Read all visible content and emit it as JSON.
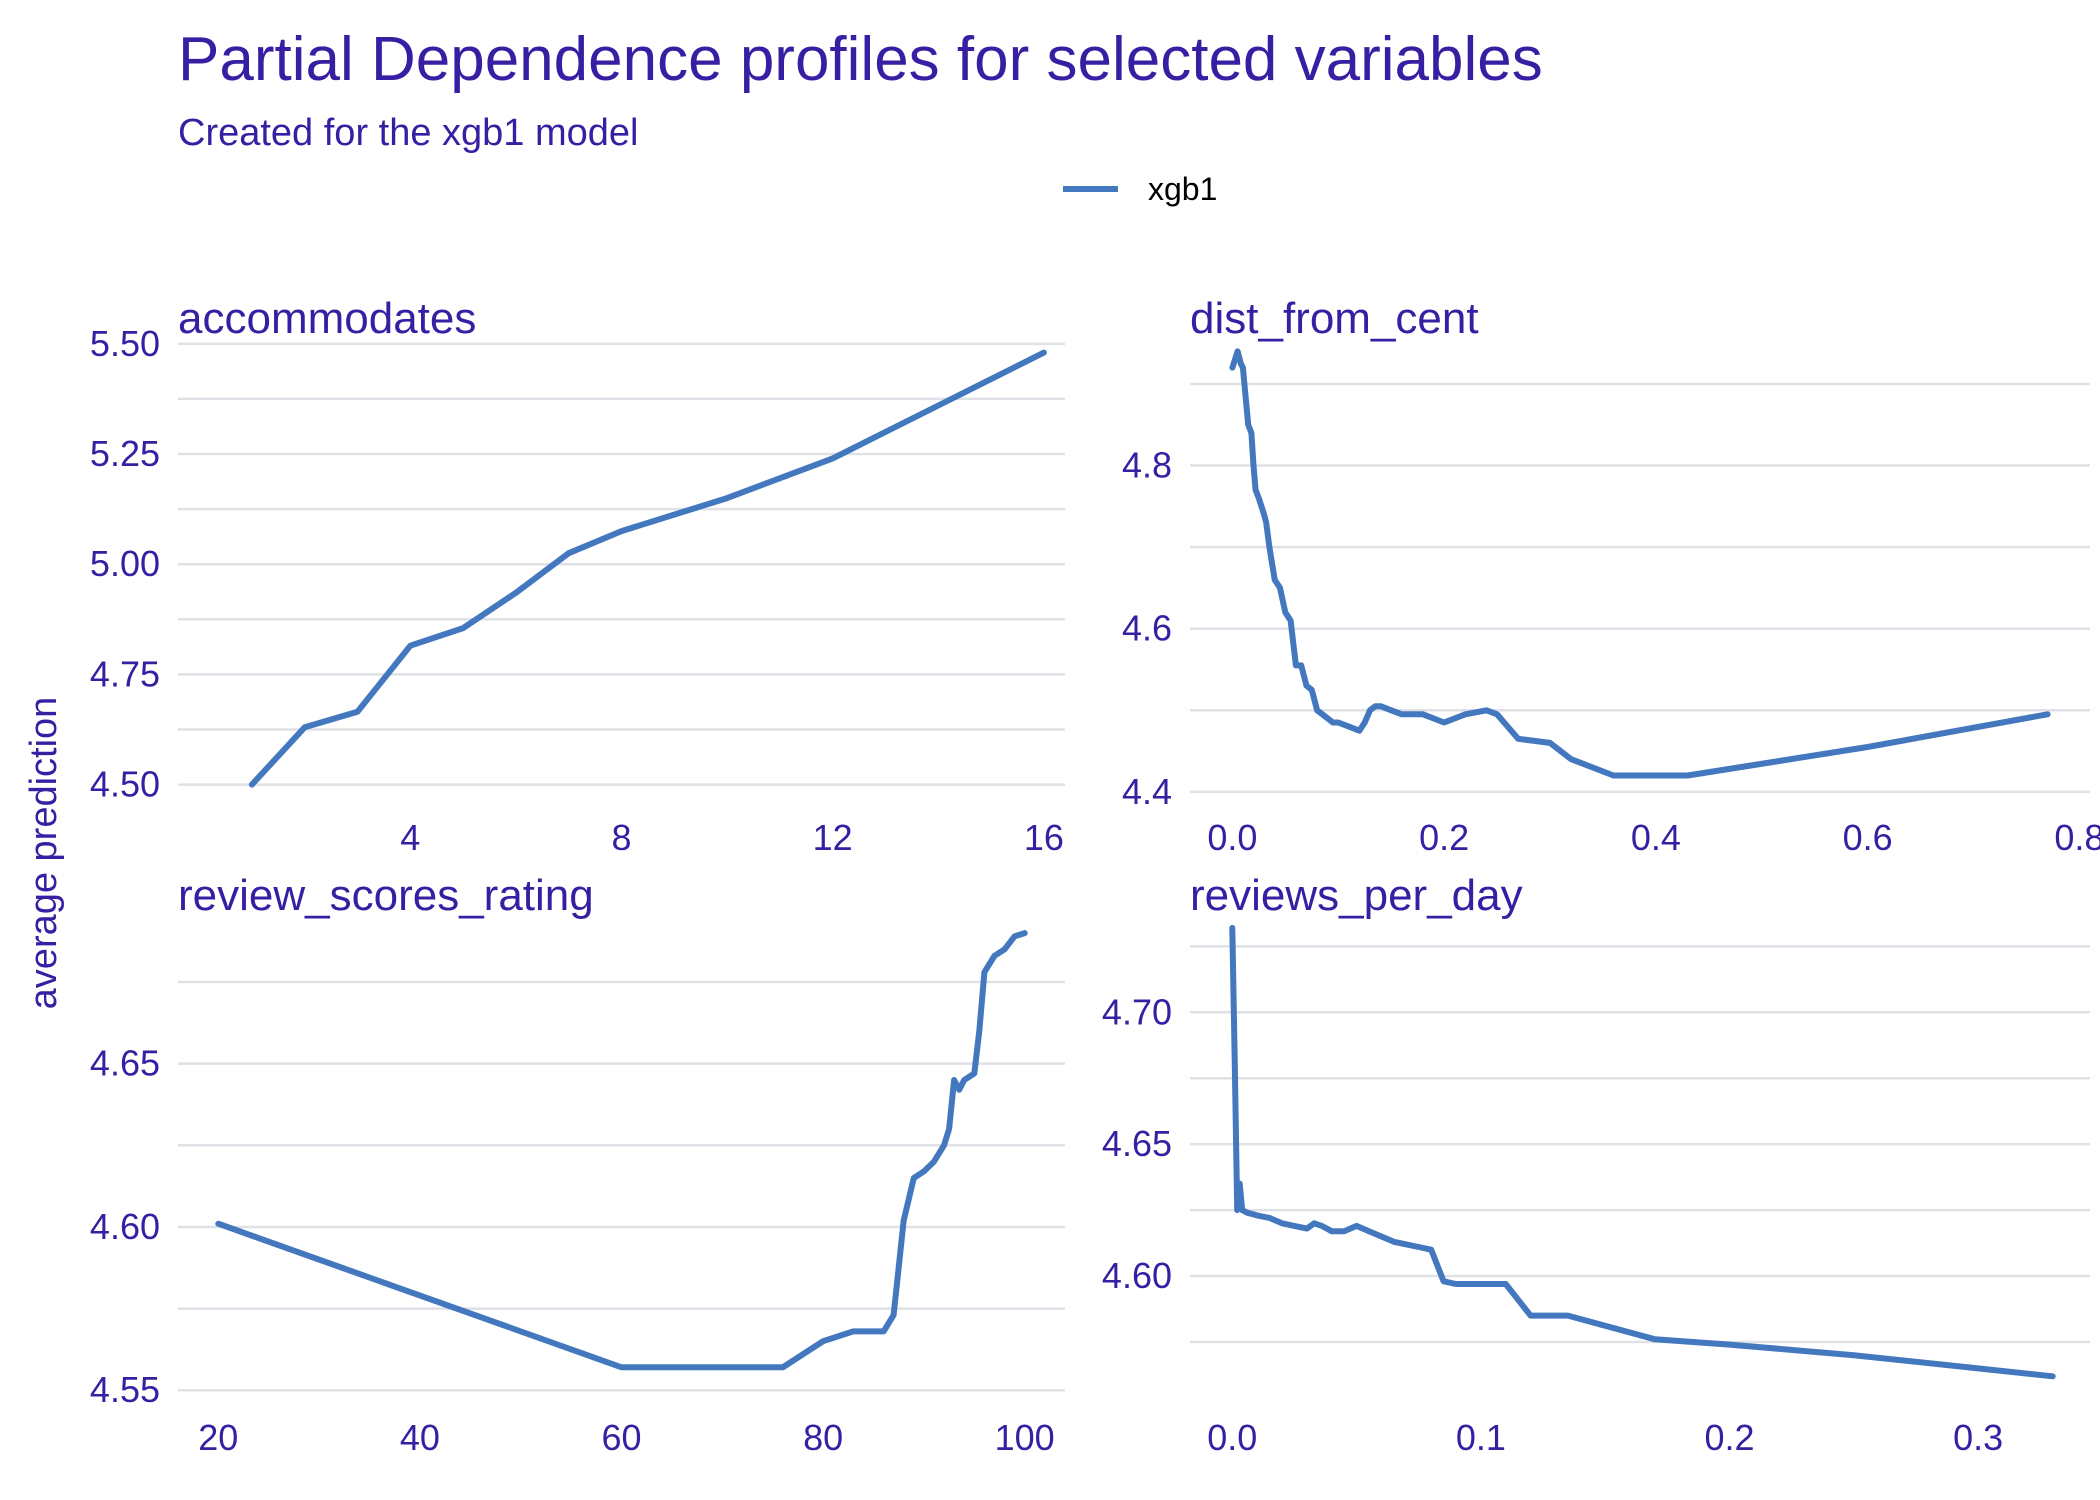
{
  "title": "Partial Dependence profiles for selected variables",
  "subtitle": "Created for the xgb1 model",
  "ylabel": "average prediction",
  "legend": {
    "label": "xgb1",
    "color": "#4378bf"
  },
  "chart_data": [
    {
      "type": "line",
      "title": "accommodates",
      "series": [
        {
          "name": "xgb1",
          "x": [
            1,
            2,
            3,
            4,
            5,
            6,
            7,
            8,
            10,
            12,
            14,
            16
          ],
          "y": [
            4.5,
            4.63,
            4.665,
            4.815,
            4.855,
            4.935,
            5.025,
            5.075,
            5.15,
            5.24,
            5.36,
            5.48
          ]
        }
      ],
      "xticks": [
        4,
        8,
        12,
        16
      ],
      "yticks": [
        4.5,
        4.75,
        5.0,
        5.25,
        5.5
      ],
      "ytick_labels": [
        "4.50",
        "4.75",
        "5.00",
        "5.25",
        "5.50"
      ],
      "xlim": [
        -0.4,
        16.4
      ],
      "ylim": [
        4.465,
        5.52
      ]
    },
    {
      "type": "line",
      "title": "dist_from_cent",
      "series": [
        {
          "name": "xgb1",
          "x": [
            0.0,
            0.005,
            0.008,
            0.01,
            0.015,
            0.018,
            0.02,
            0.022,
            0.025,
            0.03,
            0.032,
            0.035,
            0.04,
            0.045,
            0.05,
            0.055,
            0.06,
            0.065,
            0.07,
            0.075,
            0.08,
            0.085,
            0.09,
            0.095,
            0.1,
            0.11,
            0.12,
            0.125,
            0.13,
            0.135,
            0.14,
            0.15,
            0.16,
            0.18,
            0.2,
            0.22,
            0.24,
            0.25,
            0.27,
            0.3,
            0.32,
            0.36,
            0.4,
            0.43,
            0.6,
            0.77
          ],
          "y": [
            4.92,
            4.94,
            4.925,
            4.92,
            4.85,
            4.84,
            4.8,
            4.77,
            4.76,
            4.74,
            4.73,
            4.7,
            4.66,
            4.65,
            4.62,
            4.61,
            4.555,
            4.555,
            4.53,
            4.525,
            4.5,
            4.495,
            4.49,
            4.485,
            4.485,
            4.48,
            4.475,
            4.485,
            4.5,
            4.505,
            4.505,
            4.5,
            4.495,
            4.495,
            4.485,
            4.495,
            4.5,
            4.495,
            4.465,
            4.46,
            4.44,
            4.42,
            4.42,
            4.42,
            4.455,
            4.495
          ],
          "color": "#4378bf"
        }
      ],
      "xticks": [
        0.0,
        0.2,
        0.4,
        0.6,
        0.8
      ],
      "xtick_labels": [
        "0.0",
        "0.2",
        "0.4",
        "0.6",
        "0.8"
      ],
      "yticks": [
        4.4,
        4.6,
        4.8
      ],
      "ytick_labels": [
        "4.4",
        "4.6",
        "4.8"
      ],
      "grid_y": [
        4.4,
        4.5,
        4.6,
        4.7,
        4.8,
        4.9
      ],
      "xlim": [
        -0.04,
        0.81
      ],
      "ylim": [
        4.39,
        4.96
      ]
    },
    {
      "type": "line",
      "title": "review_scores_rating",
      "series": [
        {
          "name": "xgb1",
          "x": [
            20,
            60,
            70,
            76,
            80,
            83,
            86,
            87,
            88,
            89,
            90,
            91,
            92,
            92.5,
            93,
            93.5,
            94,
            95,
            95.5,
            96,
            97,
            98,
            99,
            100
          ],
          "y": [
            4.601,
            4.557,
            4.557,
            4.557,
            4.565,
            4.568,
            4.568,
            4.573,
            4.602,
            4.615,
            4.617,
            4.62,
            4.625,
            4.63,
            4.645,
            4.642,
            4.645,
            4.647,
            4.66,
            4.678,
            4.683,
            4.685,
            4.689,
            4.69
          ]
        }
      ],
      "xticks": [
        20,
        40,
        60,
        80,
        100
      ],
      "yticks": [
        4.55,
        4.6,
        4.65
      ],
      "ytick_labels": [
        "4.55",
        "4.60",
        "4.65"
      ],
      "xlim": [
        16,
        104
      ],
      "ylim": [
        4.547,
        4.694
      ]
    },
    {
      "type": "line",
      "title": "reviews_per_day",
      "series": [
        {
          "name": "xgb1",
          "x": [
            0.0,
            0.001,
            0.002,
            0.003,
            0.004,
            0.006,
            0.01,
            0.015,
            0.02,
            0.025,
            0.03,
            0.033,
            0.036,
            0.04,
            0.045,
            0.05,
            0.055,
            0.06,
            0.065,
            0.07,
            0.075,
            0.08,
            0.085,
            0.09,
            0.1,
            0.11,
            0.115,
            0.12,
            0.135,
            0.17,
            0.2,
            0.25,
            0.3,
            0.33
          ],
          "y": [
            4.732,
            4.68,
            4.625,
            4.635,
            4.625,
            4.624,
            4.623,
            4.622,
            4.62,
            4.619,
            4.618,
            4.62,
            4.619,
            4.617,
            4.617,
            4.619,
            4.617,
            4.615,
            4.613,
            4.612,
            4.611,
            4.61,
            4.598,
            4.597,
            4.597,
            4.597,
            4.591,
            4.585,
            4.585,
            4.576,
            4.574,
            4.57,
            4.565,
            4.562
          ]
        }
      ],
      "xticks": [
        0.0,
        0.1,
        0.2,
        0.3
      ],
      "xtick_labels": [
        "0.0",
        "0.1",
        "0.2",
        "0.3"
      ],
      "yticks": [
        4.6,
        4.65,
        4.7
      ],
      "ytick_labels": [
        "4.60",
        "4.65",
        "4.70"
      ],
      "xlim": [
        -0.017,
        0.345
      ],
      "ylim": [
        4.553,
        4.735
      ]
    }
  ]
}
